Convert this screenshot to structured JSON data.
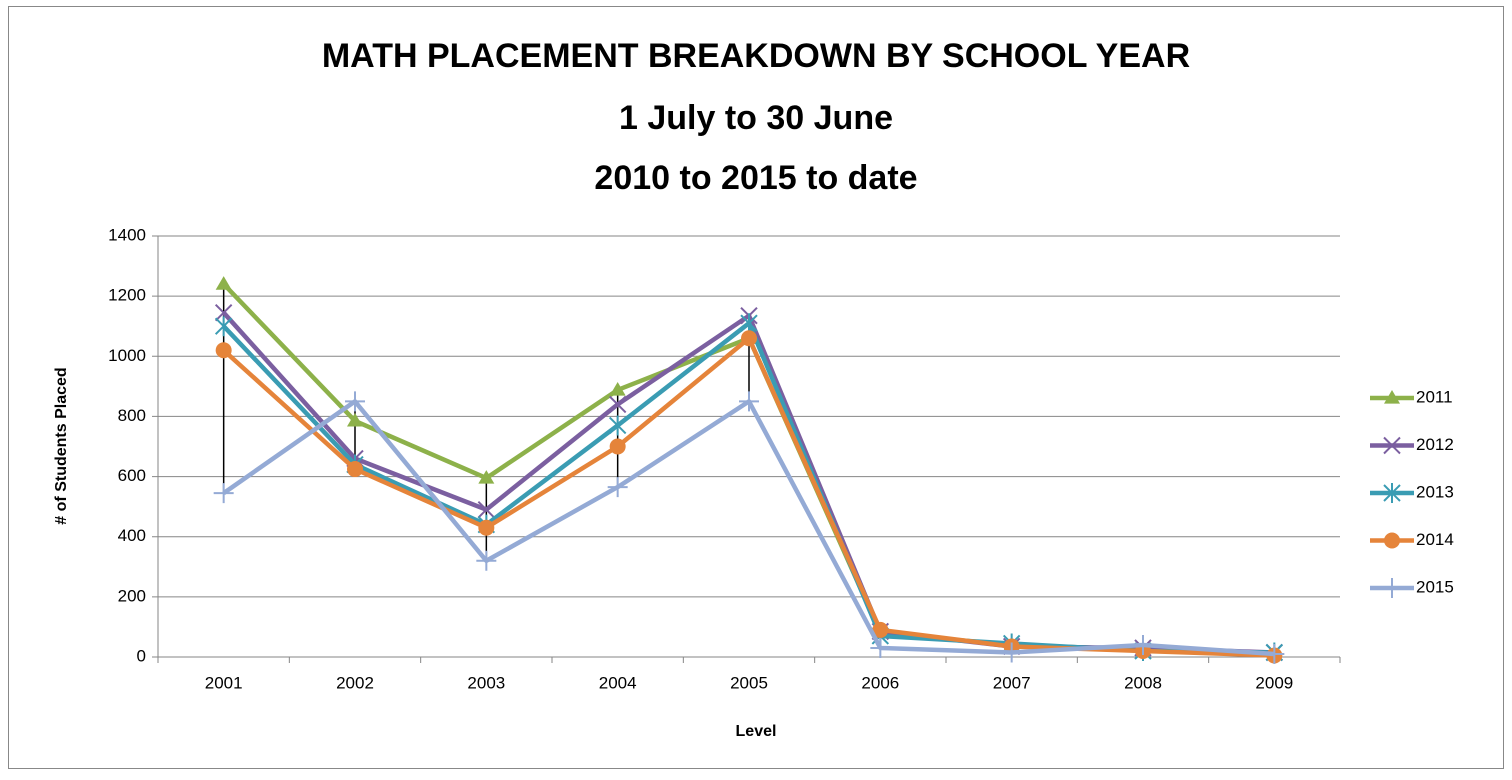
{
  "chart_data": {
    "type": "line",
    "title": [
      "MATH PLACEMENT BREAKDOWN BY SCHOOL YEAR",
      "1 July to 30 June",
      "2010 to 2015 to date"
    ],
    "x_label": "Level",
    "y_label": "# of Students Placed",
    "categories": [
      "2001",
      "2002",
      "2003",
      "2004",
      "2005",
      "2006",
      "2007",
      "2008",
      "2009"
    ],
    "series": [
      {
        "name": "2011",
        "color": "#8db14a",
        "marker": "triangle",
        "values": [
          1240,
          785,
          595,
          888,
          1060,
          80,
          40,
          25,
          10
        ]
      },
      {
        "name": "2012",
        "color": "#7b5fa0",
        "marker": "x",
        "values": [
          1145,
          660,
          490,
          840,
          1135,
          85,
          35,
          30,
          15
        ]
      },
      {
        "name": "2013",
        "color": "#3a9cb3",
        "marker": "asterisk",
        "values": [
          1100,
          640,
          440,
          770,
          1110,
          70,
          45,
          20,
          15
        ]
      },
      {
        "name": "2014",
        "color": "#e5843a",
        "marker": "circle",
        "values": [
          1020,
          625,
          430,
          700,
          1060,
          90,
          35,
          20,
          5
        ]
      },
      {
        "name": "2015",
        "color": "#94aad5",
        "marker": "plus",
        "values": [
          545,
          850,
          320,
          565,
          850,
          30,
          15,
          40,
          10
        ]
      }
    ],
    "high_low_lines": true,
    "ylim": [
      0,
      1400
    ],
    "yticks": [
      0,
      200,
      400,
      600,
      800,
      1000,
      1200,
      1400
    ],
    "grid": true,
    "legend": "right"
  }
}
